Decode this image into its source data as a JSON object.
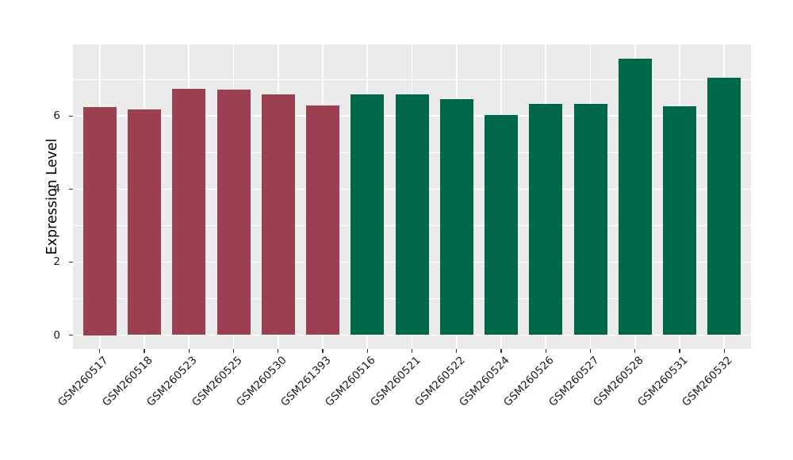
{
  "page": {
    "background": "#FFFFFF"
  },
  "chart_data": {
    "type": "bar",
    "title": "",
    "xlabel": "",
    "ylabel": "Expression Level",
    "ylim": [
      0,
      7.95
    ],
    "yticks": [
      0,
      2,
      4,
      6
    ],
    "grid": "on",
    "grid_color": "#FFFFFF",
    "panel_background": "#EBEBEB",
    "axis_text_color": "#1A1A1A",
    "legend_position": "none",
    "x_label_angle_deg": 45,
    "categories": [
      "GSM260517",
      "GSM260518",
      "GSM260523",
      "GSM260525",
      "GSM260530",
      "GSM261393",
      "GSM260516",
      "GSM260521",
      "GSM260522",
      "GSM260524",
      "GSM260526",
      "GSM260527",
      "GSM260528",
      "GSM260531",
      "GSM260532"
    ],
    "values": [
      6.25,
      6.17,
      6.75,
      6.73,
      6.6,
      6.29,
      6.59,
      6.58,
      6.46,
      6.03,
      6.32,
      6.33,
      7.57,
      6.26,
      7.04
    ],
    "bar_colors": [
      "#9B4051",
      "#9B4051",
      "#9B4051",
      "#9B4051",
      "#9B4051",
      "#9B4051",
      "#00684A",
      "#00684A",
      "#00684A",
      "#00684A",
      "#00684A",
      "#00684A",
      "#00684A",
      "#00684A",
      "#00684A"
    ],
    "group_colors": {
      "left_group": "#9B4051",
      "right_group": "#00684A"
    }
  }
}
